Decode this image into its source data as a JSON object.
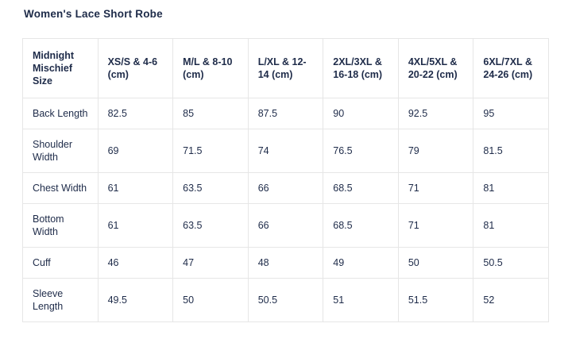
{
  "page": {
    "title": "Women's Lace Short Robe"
  },
  "colors": {
    "text": "#1e2b49",
    "border": "#e6e6e6",
    "background": "#ffffff"
  },
  "chart_data": {
    "type": "table",
    "title": "Women's Lace Short Robe",
    "corner_header": "Midnight Mischief Size",
    "column_headers": [
      "XS/S & 4-6 (cm)",
      "M/L & 8-10 (cm)",
      "L/XL & 12-14 (cm)",
      "2XL/3XL & 16-18 (cm)",
      "4XL/5XL & 20-22 (cm)",
      "6XL/7XL & 24-26 (cm)"
    ],
    "rows": [
      {
        "label": "Back Length",
        "values": [
          "82.5",
          "85",
          "87.5",
          "90",
          "92.5",
          "95"
        ]
      },
      {
        "label": "Shoulder Width",
        "values": [
          "69",
          "71.5",
          "74",
          "76.5",
          "79",
          "81.5"
        ]
      },
      {
        "label": "Chest Width",
        "values": [
          "61",
          "63.5",
          "66",
          "68.5",
          "71",
          "81"
        ]
      },
      {
        "label": "Bottom Width",
        "values": [
          "61",
          "63.5",
          "66",
          "68.5",
          "71",
          "81"
        ]
      },
      {
        "label": "Cuff",
        "values": [
          "46",
          "47",
          "48",
          "49",
          "50",
          "50.5"
        ]
      },
      {
        "label": "Sleeve Length",
        "values": [
          "49.5",
          "50",
          "50.5",
          "51",
          "51.5",
          "52"
        ]
      }
    ]
  }
}
